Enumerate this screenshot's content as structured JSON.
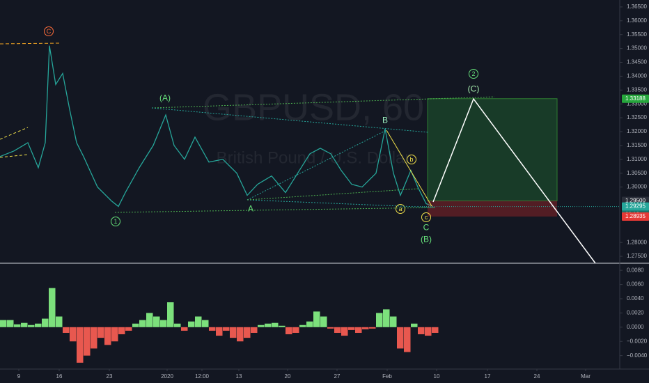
{
  "chart_data": [
    {
      "type": "line",
      "watermark": "GBPUSD, 60",
      "subtitle": "British Pound / U.S. Dollar",
      "x": [
        0,
        20,
        40,
        55,
        65,
        71,
        80,
        90,
        100,
        110,
        120,
        140,
        160,
        170,
        180,
        200,
        220,
        238,
        250,
        265,
        280,
        300,
        320,
        340,
        355,
        370,
        390,
        410,
        430,
        445,
        460,
        475,
        490,
        505,
        520,
        540,
        553,
        565,
        575,
        590,
        600,
        612,
        622
      ],
      "values": [
        1.311,
        1.313,
        1.316,
        1.307,
        1.316,
        1.351,
        1.337,
        1.341,
        1.328,
        1.316,
        1.311,
        1.3,
        1.295,
        1.293,
        1.298,
        1.307,
        1.315,
        1.326,
        1.315,
        1.31,
        1.318,
        1.309,
        1.31,
        1.305,
        1.297,
        1.301,
        1.304,
        1.298,
        1.306,
        1.312,
        1.314,
        1.312,
        1.306,
        1.301,
        1.3,
        1.305,
        1.321,
        1.305,
        1.297,
        1.306,
        1.3,
        1.294,
        1.29295
      ],
      "color": "#26a69a",
      "xlim": [
        0,
        890
      ],
      "ylim": [
        1.2725,
        1.3675
      ],
      "yticks": [
        {
          "value": 1.365,
          "label": "1.36500"
        },
        {
          "value": 1.36,
          "label": "1.36000"
        },
        {
          "value": 1.355,
          "label": "1.35500"
        },
        {
          "value": 1.35,
          "label": "1.35000"
        },
        {
          "value": 1.345,
          "label": "1.34500"
        },
        {
          "value": 1.34,
          "label": "1.34000"
        },
        {
          "value": 1.335,
          "label": "1.33500"
        },
        {
          "value": 1.33,
          "label": "1.33000"
        },
        {
          "value": 1.325,
          "label": "1.32500"
        },
        {
          "value": 1.32,
          "label": "1.32000"
        },
        {
          "value": 1.315,
          "label": "1.31500"
        },
        {
          "value": 1.31,
          "label": "1.31000"
        },
        {
          "value": 1.305,
          "label": "1.30500"
        },
        {
          "value": 1.3,
          "label": "1.30000"
        },
        {
          "value": 1.28,
          "label": "1.28000"
        },
        {
          "value": 1.275,
          "label": "1.27500"
        }
      ],
      "xticks": [
        {
          "value": 27,
          "label": "9"
        },
        {
          "value": 85,
          "label": "16"
        },
        {
          "value": 157,
          "label": "23"
        },
        {
          "value": 240,
          "label": "2020"
        },
        {
          "value": 290,
          "label": "12:00"
        },
        {
          "value": 343,
          "label": "13"
        },
        {
          "value": 413,
          "label": "20"
        },
        {
          "value": 484,
          "label": "27"
        },
        {
          "value": 556,
          "label": "Feb"
        },
        {
          "value": 627,
          "label": "10"
        },
        {
          "value": 700,
          "label": "17"
        },
        {
          "value": 771,
          "label": "24"
        },
        {
          "value": 841,
          "label": "Mar"
        }
      ],
      "annotations": [
        "C",
        "(A)",
        "B",
        "b",
        "a",
        "c",
        "C",
        "(B)",
        "1",
        "A",
        "2",
        "(C)"
      ],
      "position": {
        "target": 1.33188,
        "entry": {
          "value": 1.295,
          "label": "1.29500"
        },
        "stop": 1.28935
      },
      "last_price": 1.29295,
      "countdown": "20:13"
    },
    {
      "type": "bar",
      "x": [
        0,
        10,
        20,
        30,
        40,
        50,
        60,
        70,
        80,
        90,
        100,
        110,
        120,
        130,
        140,
        150,
        160,
        170,
        180,
        190,
        200,
        210,
        220,
        230,
        240,
        250,
        260,
        270,
        280,
        290,
        300,
        310,
        320,
        330,
        340,
        350,
        360,
        370,
        380,
        390,
        400,
        410,
        420,
        430,
        440,
        450,
        460,
        470,
        480,
        490,
        500,
        510,
        520,
        530,
        540,
        550,
        560,
        570,
        580,
        590,
        600,
        610,
        620
      ],
      "values": [
        0.001,
        0.001,
        0.0004,
        0.0006,
        0.0003,
        0.0005,
        0.0012,
        0.0055,
        0.0015,
        -0.0008,
        -0.002,
        -0.005,
        -0.004,
        -0.003,
        -0.0015,
        -0.0025,
        -0.002,
        -0.001,
        -0.0005,
        0.0005,
        0.001,
        0.002,
        0.0015,
        0.001,
        0.0035,
        0.0005,
        -0.0005,
        0.0008,
        0.0015,
        0.001,
        -0.0005,
        -0.0012,
        -0.0005,
        -0.0015,
        -0.002,
        -0.0015,
        -0.0008,
        0.0003,
        0.0005,
        0.0006,
        0.0002,
        -0.001,
        -0.0008,
        0.0003,
        0.0008,
        0.0022,
        0.0015,
        -0.0002,
        -0.0008,
        -0.0012,
        -0.0004,
        -0.0008,
        -0.0003,
        -0.0002,
        0.002,
        0.0025,
        0.0015,
        -0.003,
        -0.0035,
        0.0005,
        -0.001,
        -0.0012,
        -0.0008
      ],
      "positive_color": "#7ce07c",
      "negative_color": "#e8584f",
      "xlim": [
        0,
        890
      ],
      "ylim": [
        -0.0057,
        0.0088
      ],
      "yticks": [
        {
          "value": 0.008,
          "label": "0.0080"
        },
        {
          "value": 0.006,
          "label": "0.0060"
        },
        {
          "value": 0.004,
          "label": "0.0040"
        },
        {
          "value": 0.002,
          "label": "0.0020"
        },
        {
          "value": 0,
          "label": "0.0000"
        },
        {
          "value": -0.002,
          "label": "−0.0020"
        },
        {
          "value": -0.004,
          "label": "−0.0040"
        }
      ]
    }
  ]
}
